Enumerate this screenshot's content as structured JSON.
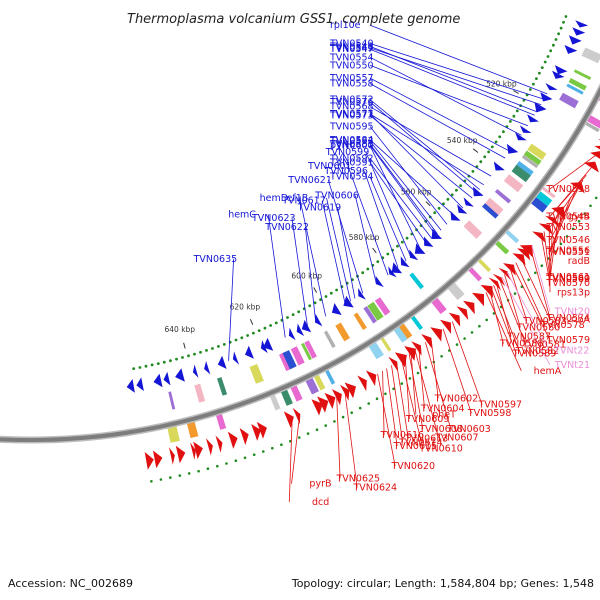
{
  "title": "Thermoplasma volcanium GSS1, complete genome",
  "footer": {
    "accession": "Accession: NC_002689",
    "stats": "Topology: circular; Length: 1,584,804 bp; Genes: 1,548"
  },
  "colors": {
    "forward": "#1515d6",
    "reverse": "#e01010",
    "rna": "#ea8fd8",
    "backbone": "#7d7d7d",
    "dots": "#1f8a1f"
  },
  "ticks": [
    {
      "label": "520 kbp",
      "angle": 31.0
    },
    {
      "label": "540 kbp",
      "angle": 38.2
    },
    {
      "label": "560 kbp",
      "angle": 45.4
    },
    {
      "label": "580 kbp",
      "angle": 52.6
    },
    {
      "label": "600 kbp",
      "angle": 59.8
    },
    {
      "label": "620 kbp",
      "angle": 67.0
    },
    {
      "label": "640 kbp",
      "angle": 74.2
    }
  ],
  "forward_labels": [
    {
      "text": "TVN0549",
      "gene_angle": 30.8
    },
    {
      "text": "TVN0548",
      "gene_angle": 31.6
    },
    {
      "text": "rpl10e",
      "gene_angle": 29.6
    },
    {
      "text": "TVN0540",
      "gene_angle": 30.2
    },
    {
      "text": "TVN0547",
      "gene_angle": 32.0
    },
    {
      "text": "TVN0554",
      "gene_angle": 34.3
    },
    {
      "text": "TVN0550",
      "gene_angle": 33.2
    },
    {
      "text": "TVN0557",
      "gene_angle": 36.2
    },
    {
      "text": "TVN0576",
      "gene_angle": 41.3
    },
    {
      "text": "TVN0571",
      "gene_angle": 40.3
    },
    {
      "text": "TVN0558",
      "gene_angle": 37.0
    },
    {
      "text": "TVN0572",
      "gene_angle": 40.9
    },
    {
      "text": "TVN0568",
      "gene_angle": 39.2
    },
    {
      "text": "TVN0573",
      "gene_angle": 42.0
    },
    {
      "text": "TVN0595",
      "gene_angle": 45.5
    },
    {
      "text": "TVN0584",
      "gene_angle": 44.4
    },
    {
      "text": "TVN0593",
      "gene_angle": 46.3
    },
    {
      "text": "TVN0577",
      "gene_angle": 43.3
    },
    {
      "text": "TVN0592",
      "gene_angle": 47.5
    },
    {
      "text": "TVN0585",
      "gene_angle": 46.8
    },
    {
      "text": "TVN0600",
      "gene_angle": 49.0
    },
    {
      "text": "TVN0591",
      "gene_angle": 48.2
    },
    {
      "text": "pyrH",
      "gene_angle": 47.0
    },
    {
      "text": "TVN0599",
      "gene_angle": 50.2
    },
    {
      "text": "TVN0594",
      "gene_angle": 50.8
    },
    {
      "text": "TVN0596",
      "gene_angle": 51.8
    },
    {
      "text": "TVN0621",
      "gene_angle": 56.0
    },
    {
      "text": "TVN0619",
      "gene_angle": 56.9
    },
    {
      "text": "ef1B",
      "gene_angle": 57.4
    },
    {
      "text": "TVN0601",
      "gene_angle": 53.0
    },
    {
      "text": "TVN0606",
      "gene_angle": 54.4
    },
    {
      "text": "TVN0617",
      "gene_angle": 58.0
    },
    {
      "text": "hemD",
      "gene_angle": 60.2
    },
    {
      "text": "TVN0622",
      "gene_angle": 61.3
    },
    {
      "text": "TVN0623",
      "gene_angle": 62.2
    },
    {
      "text": "hemC",
      "gene_angle": 64.6
    },
    {
      "text": "TVN0635",
      "gene_angle": 70.5
    }
  ],
  "reverse_labels": [
    {
      "text": "TVN0538",
      "gene_angle": 31.5
    },
    {
      "text": "gyrB",
      "gene_angle": 33.2
    },
    {
      "text": "TVN0546",
      "gene_angle": 34.5
    },
    {
      "text": "TVN0544",
      "gene_angle": 34.0
    },
    {
      "text": "TVN0556",
      "gene_angle": 36.3
    },
    {
      "text": "TVN0551",
      "gene_angle": 35.6
    },
    {
      "text": "TVN0553",
      "gene_angle": 35.0
    },
    {
      "text": "radB",
      "gene_angle": 37.3
    },
    {
      "text": "TVN0560",
      "gene_angle": 38.0
    },
    {
      "text": "TVN0570",
      "gene_angle": 40.4
    },
    {
      "text": "TVN0561",
      "gene_angle": 38.8
    },
    {
      "text": "rps13p",
      "gene_angle": 39.3
    },
    {
      "text": "TVN0569",
      "gene_angle": 40.0
    },
    {
      "text": "ribA",
      "gene_angle": 43.0
    },
    {
      "text": "TVN0574",
      "gene_angle": 41.8
    },
    {
      "text": "TVN0583",
      "gene_angle": 44.3
    },
    {
      "text": "TVN0578",
      "gene_angle": 43.6
    },
    {
      "text": "TVN0579",
      "gene_angle": 44.0
    },
    {
      "text": "TVN0580",
      "gene_angle": 45.0
    },
    {
      "text": "TVN0589",
      "gene_angle": 46.6
    },
    {
      "text": "hemA",
      "gene_angle": 47.2
    },
    {
      "text": "TVN0587",
      "gene_angle": 46.0
    },
    {
      "text": "TVN0581",
      "gene_angle": 45.6
    },
    {
      "text": "TVN0597",
      "gene_angle": 51.0
    },
    {
      "text": "TVN0588",
      "gene_angle": 46.8
    },
    {
      "text": "TVN0582",
      "gene_angle": 46.3
    },
    {
      "text": "TVN0598",
      "gene_angle": 52.0
    },
    {
      "text": "TVN0602",
      "gene_angle": 53.3
    },
    {
      "text": "TVN0614",
      "gene_angle": 57.4
    },
    {
      "text": "TVN0603",
      "gene_angle": 53.9
    },
    {
      "text": "TVN0604",
      "gene_angle": 54.6
    },
    {
      "text": "TVN0613",
      "gene_angle": 56.9
    },
    {
      "text": "TVN0620",
      "gene_angle": 58.8
    },
    {
      "text": "pheT",
      "gene_angle": 55.4
    },
    {
      "text": "TVN0615",
      "gene_angle": 57.9
    },
    {
      "text": "TVN0607",
      "gene_angle": 55.0
    },
    {
      "text": "TVN0616",
      "gene_angle": 58.3
    },
    {
      "text": "TVN0608",
      "gene_angle": 55.6
    },
    {
      "text": "TVN0624",
      "gene_angle": 62.0
    },
    {
      "text": "TVN0609",
      "gene_angle": 56.0
    },
    {
      "text": "TVN0625",
      "gene_angle": 62.8
    },
    {
      "text": "TVN0610",
      "gene_angle": 56.4
    },
    {
      "text": "pyrB",
      "gene_angle": 66.3
    },
    {
      "text": "dcd",
      "gene_angle": 67.0
    }
  ],
  "rna_labels": [
    {
      "text": "TVNt20",
      "gene_angle": 41.6
    },
    {
      "text": "TVNt22",
      "gene_angle": 44.7
    },
    {
      "text": "TVNt21",
      "gene_angle": 45.3
    }
  ]
}
